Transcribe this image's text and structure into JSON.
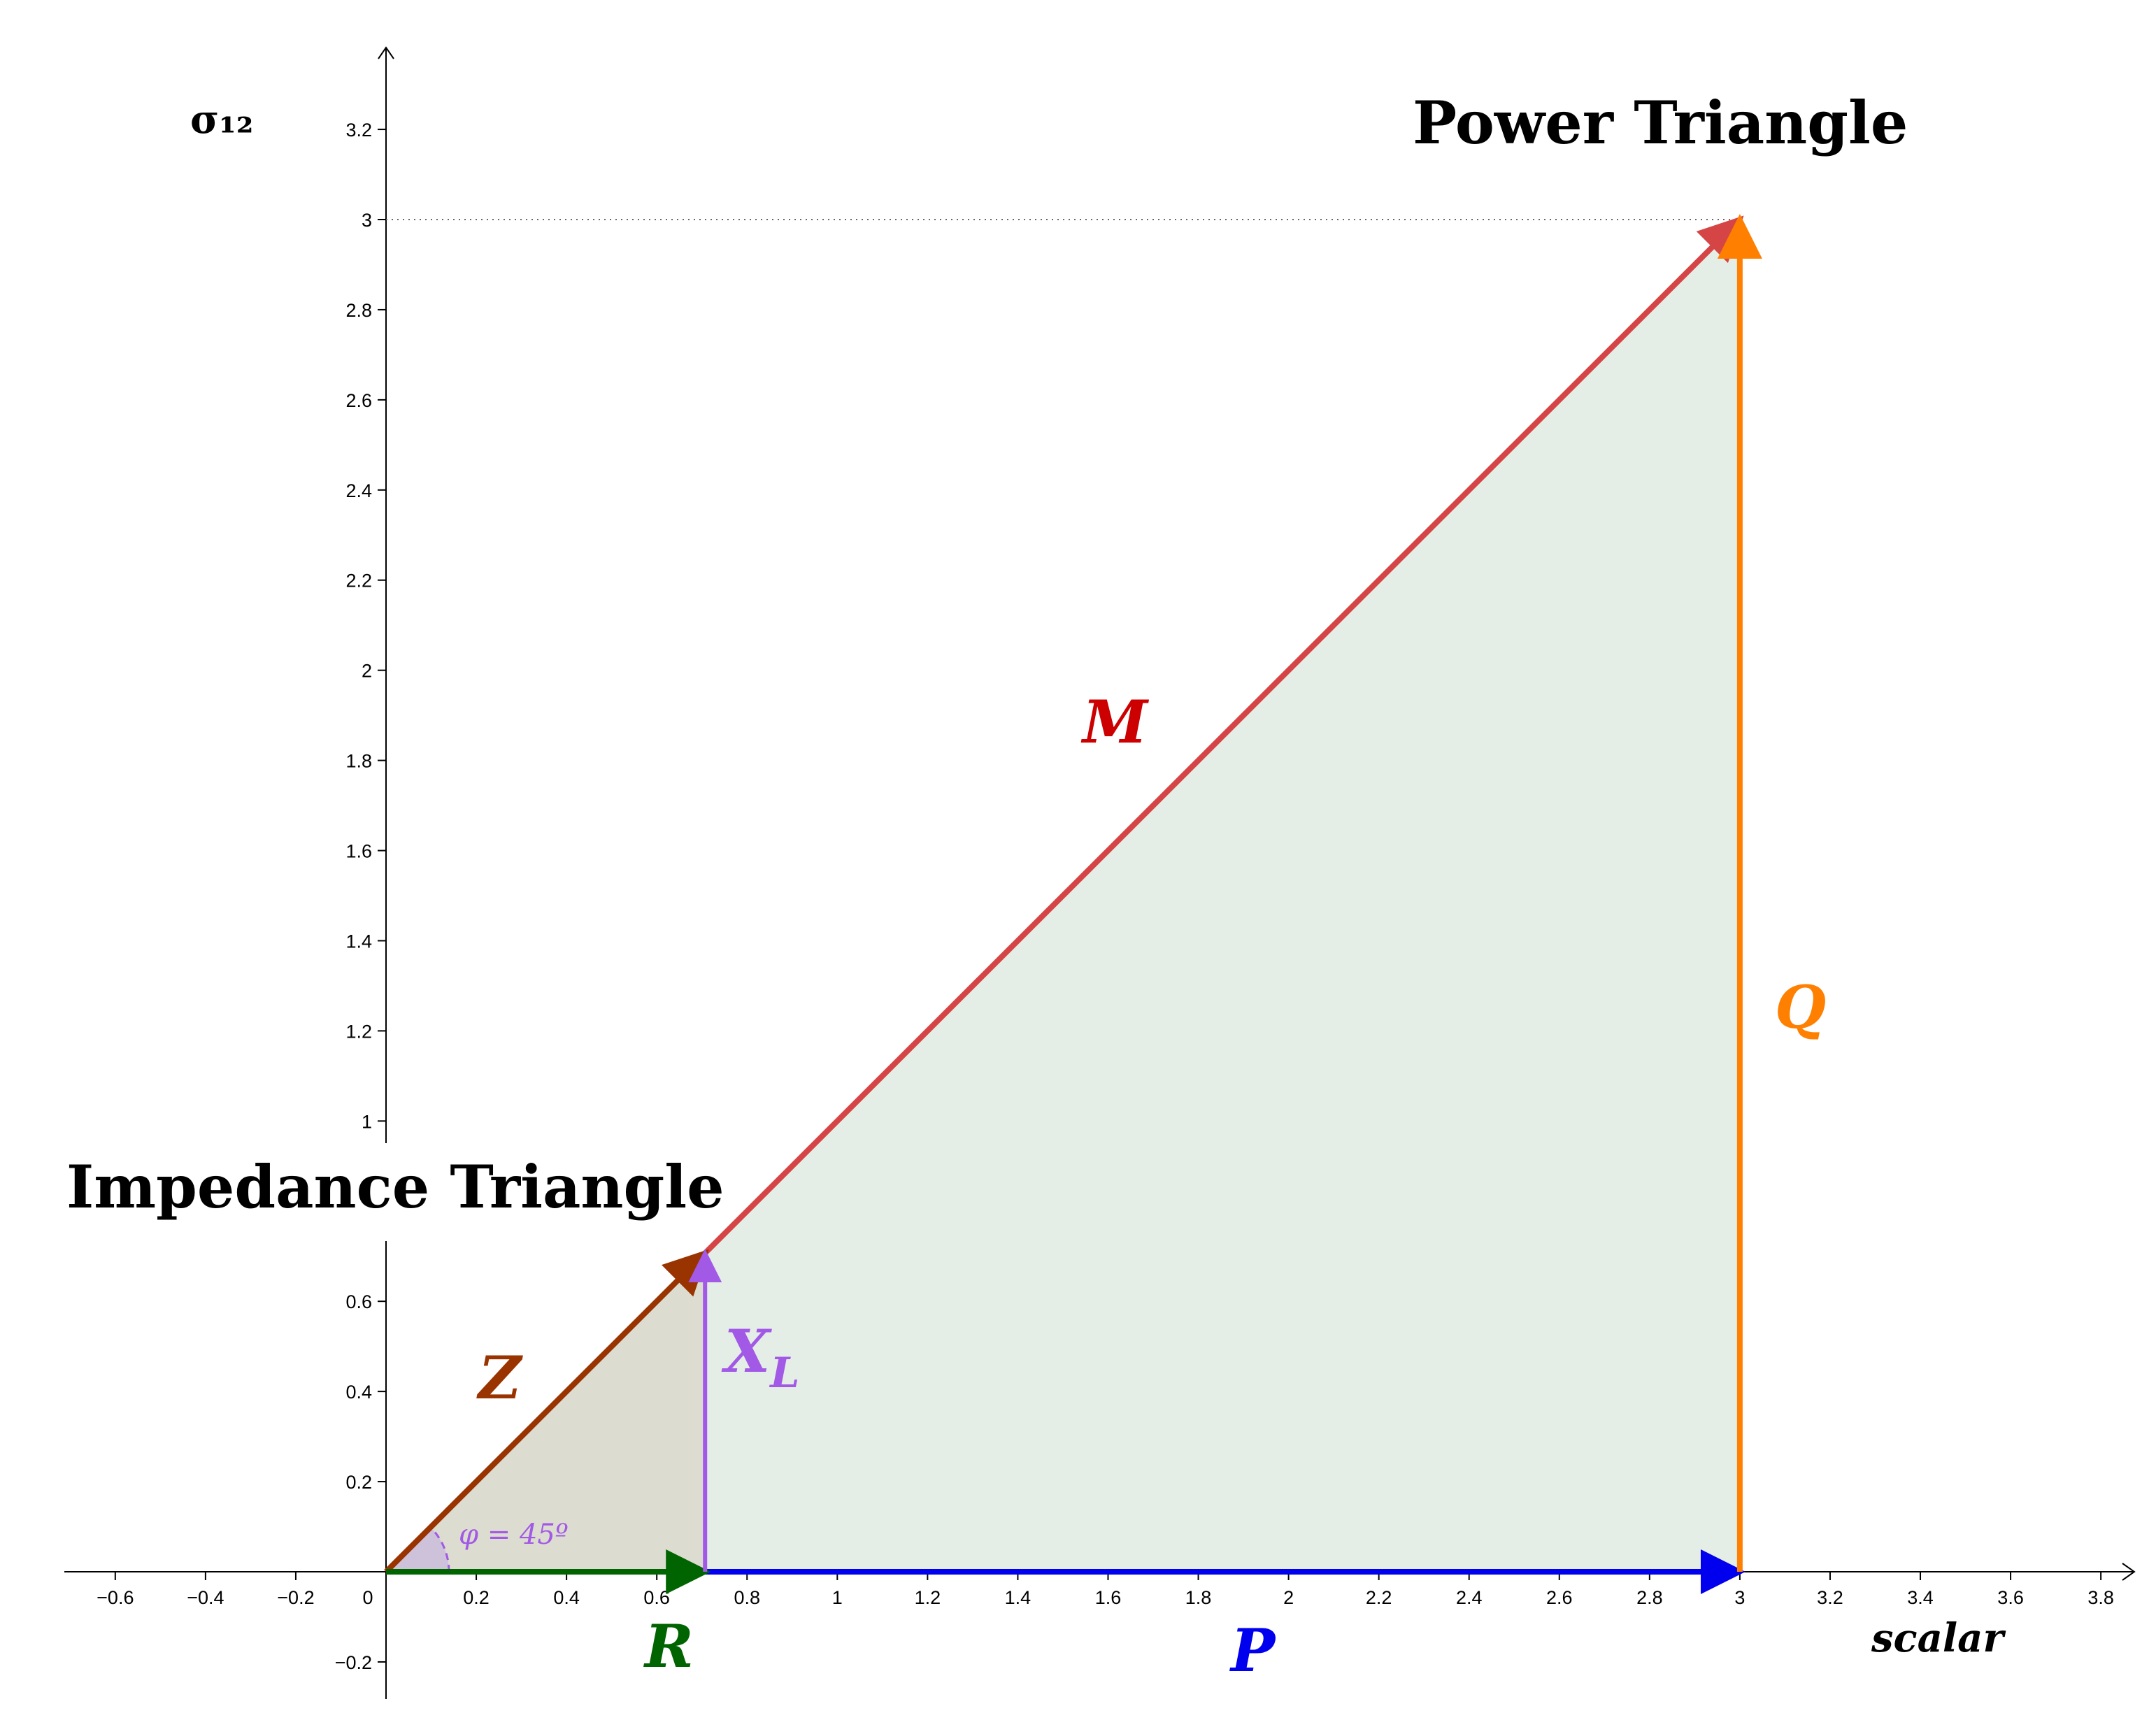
{
  "titles": {
    "power": "Power Triangle",
    "impedance": "Impedance Triangle"
  },
  "axes": {
    "x_label": "scalar",
    "y_label": "σ₁₂",
    "x_ticks": [
      "−0.6",
      "−0.4",
      "−0.2",
      "0",
      "0.2",
      "0.4",
      "0.6",
      "0.8",
      "1",
      "1.2",
      "1.4",
      "1.6",
      "1.8",
      "2",
      "2.2",
      "2.4",
      "2.6",
      "2.8",
      "3",
      "3.2",
      "3.4",
      "3.6",
      "3.8"
    ],
    "y_ticks_upper": [
      "1",
      "1.2",
      "1.4",
      "1.6",
      "1.8",
      "2",
      "2.2",
      "2.4",
      "2.6",
      "2.8",
      "3",
      "3.2"
    ],
    "y_ticks_lower": [
      "−0.2",
      "0.2",
      "0.4",
      "0.6"
    ]
  },
  "vectors": {
    "Z": {
      "label": "Z",
      "color": "#993300",
      "from": [
        0,
        0
      ],
      "to": [
        0.707,
        0.707
      ]
    },
    "R": {
      "label": "R",
      "color": "#006400",
      "from": [
        0,
        0
      ],
      "to": [
        0.707,
        0
      ]
    },
    "XL": {
      "label": "X",
      "sub": "L",
      "color": "#a259e6",
      "from": [
        0.707,
        0
      ],
      "to": [
        0.707,
        0.707
      ]
    },
    "M": {
      "label": "M",
      "color": "#cc0000",
      "line_color": "#d64545",
      "from": [
        0.707,
        0.707
      ],
      "to": [
        3,
        3
      ]
    },
    "P": {
      "label": "P",
      "color": "#0000ee",
      "from": [
        0.707,
        0
      ],
      "to": [
        3,
        0
      ]
    },
    "Q": {
      "label": "Q",
      "color": "#ff7f00",
      "from": [
        3,
        0
      ],
      "to": [
        3,
        3
      ]
    }
  },
  "angle": {
    "label": "φ = 45º",
    "degrees": 45
  },
  "fills": {
    "impedance": "#dcdcd0",
    "power": "#e4eee6"
  }
}
